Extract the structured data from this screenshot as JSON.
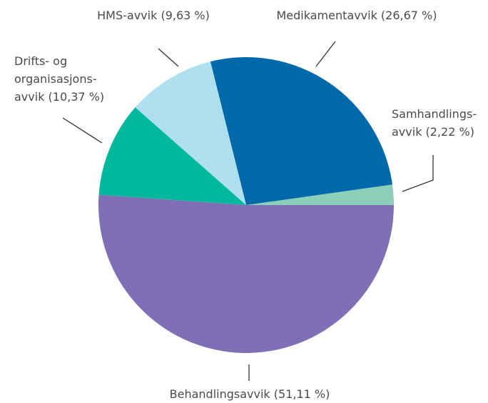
{
  "chart_data": {
    "type": "pie",
    "values": [
      2.22,
      26.67,
      9.63,
      10.37,
      51.11
    ],
    "value_labels": [
      "Samhandlings-\navvik (2,22 %)",
      "Medikamentavvik (26,67 %)",
      "HMS-avvik (9,63 %)",
      "Drifts- og\norganisasjons-\navvik (10,37 %)",
      "Behandlingsavvik (51,11 %)"
    ],
    "colors": [
      "#8ccfb8",
      "#0069aa",
      "#aee0f0",
      "#00b89c",
      "#7f70b5"
    ]
  }
}
